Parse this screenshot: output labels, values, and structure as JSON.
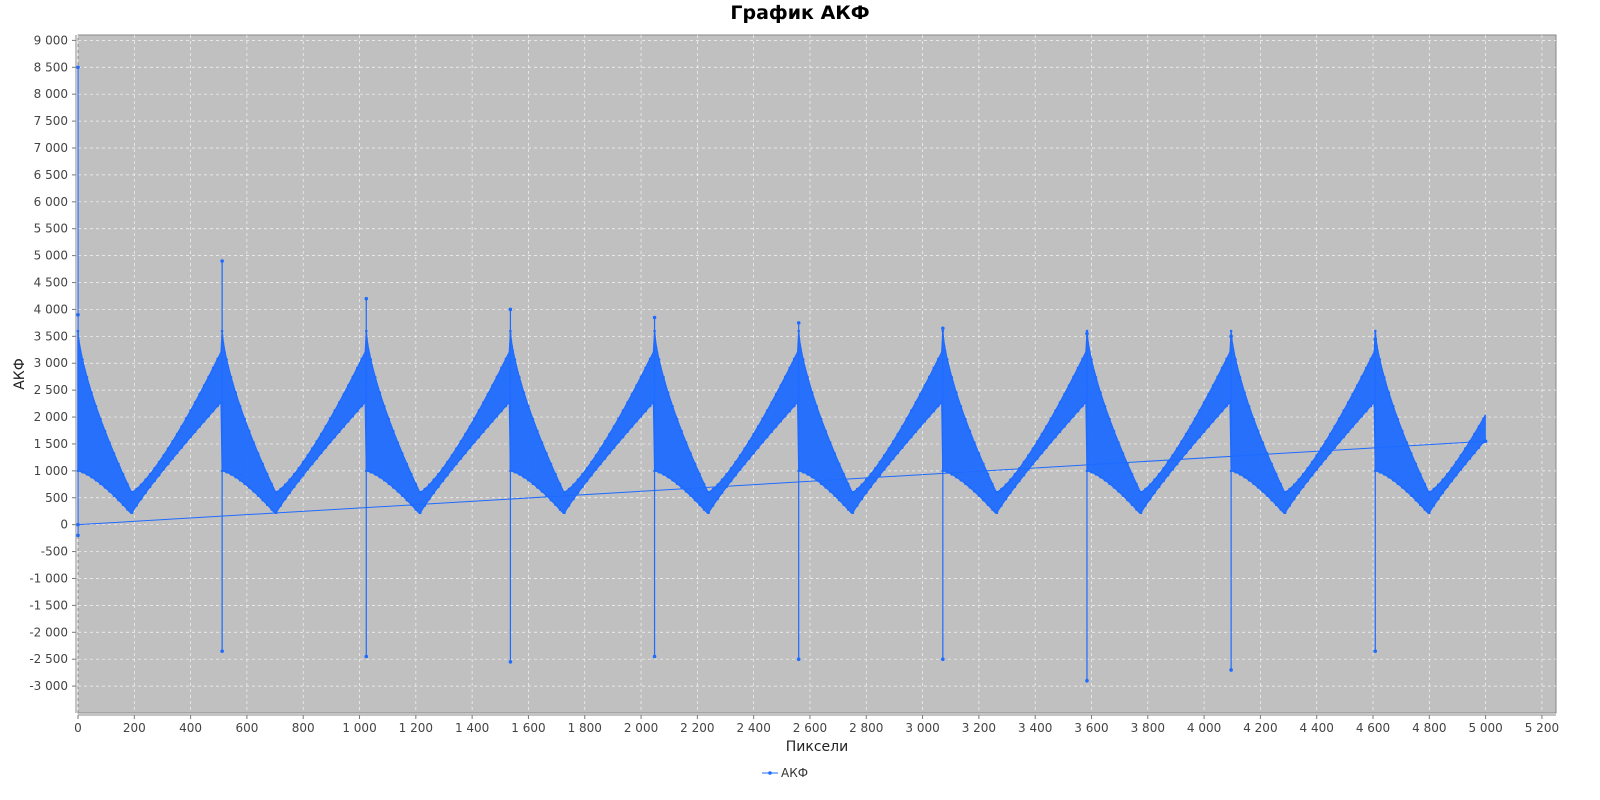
{
  "chart_data": {
    "type": "line",
    "title": "График АКФ",
    "xlabel": "Пиксели",
    "ylabel": "АКФ",
    "xlim": [
      0,
      5250
    ],
    "ylim": [
      -3500,
      9100
    ],
    "x_ticks": [
      "0",
      "200",
      "400",
      "600",
      "800",
      "1 000",
      "1 200",
      "1 400",
      "1 600",
      "1 800",
      "2 000",
      "2 200",
      "2 400",
      "2 600",
      "2 800",
      "3 000",
      "3 200",
      "3 400",
      "3 600",
      "3 800",
      "4 000",
      "4 200",
      "4 400",
      "4 600",
      "4 800",
      "5 000",
      "5 200"
    ],
    "y_ticks": [
      "9 000",
      "8 500",
      "8 000",
      "7 500",
      "7 000",
      "6 500",
      "6 000",
      "5 500",
      "5 000",
      "4 500",
      "4 000",
      "3 500",
      "3 000",
      "2 500",
      "2 000",
      "1 500",
      "1 000",
      "500",
      "0",
      "-500",
      "-1 000",
      "-1 500",
      "-2 000",
      "-2 500",
      "-3 000"
    ],
    "grid": true,
    "background": "#c0c0c0",
    "series_color": "#1e6bff",
    "legend_position": "bottom",
    "series": [
      {
        "name": "АКФ",
        "period": 512,
        "x_range": [
          0,
          5000
        ],
        "start_value": 8500,
        "peaks": [
          {
            "x": 0,
            "high": 3900,
            "low": -200
          },
          {
            "x": 512,
            "high": 4900,
            "low": -2350
          },
          {
            "x": 1024,
            "high": 4200,
            "low": -2450
          },
          {
            "x": 1536,
            "high": 4000,
            "low": -2550
          },
          {
            "x": 2048,
            "high": 3850,
            "low": -2450
          },
          {
            "x": 2560,
            "high": 3750,
            "low": -2500
          },
          {
            "x": 3072,
            "high": 3650,
            "low": -2500
          },
          {
            "x": 3584,
            "high": 3550,
            "low": -2900
          },
          {
            "x": 4096,
            "high": 3500,
            "low": -2700
          },
          {
            "x": 4608,
            "high": 3450,
            "low": -2350
          }
        ],
        "envelope": {
          "upper_after_peak": 3600,
          "upper_min": 600,
          "upper_before_peak": 3250,
          "lower_after_peak": 1000,
          "lower_min": 200,
          "lower_before_peak": 2300,
          "min_offset": 190
        },
        "wrap_line": {
          "x_start": 0,
          "y_start": 0,
          "x_end": 5000,
          "y_end": 1550
        }
      }
    ]
  }
}
